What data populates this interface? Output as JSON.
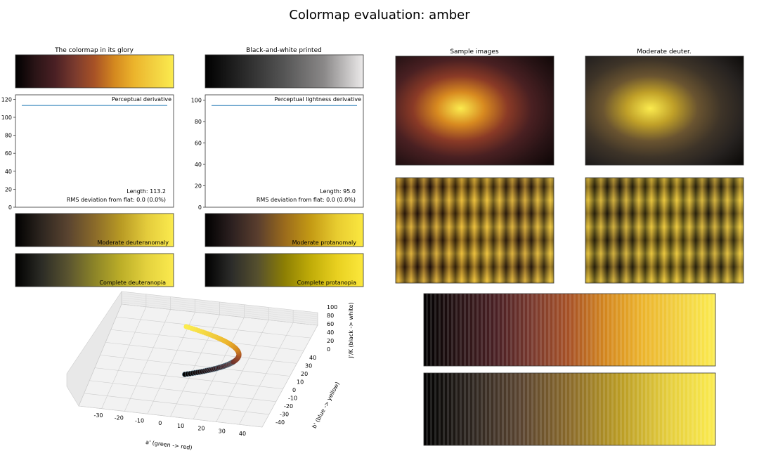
{
  "title": "Colormap evaluation: amber",
  "panels": {
    "glory_title": "The colormap in its glory",
    "bw_title": "Black-and-white printed",
    "samples_title": "Sample images",
    "deuter_title": "Moderate deuter.",
    "mod_deut": "Moderate deuteranomaly",
    "mod_prot": "Moderate protanomaly",
    "comp_deut": "Complete deuteranopia",
    "comp_prot": "Complete protanopia"
  },
  "colors": {
    "amber": [
      "#000000",
      "#2a1416",
      "#4a2024",
      "#7a3a2e",
      "#a85226",
      "#d4881f",
      "#ecb42c",
      "#f2d040",
      "#fbeb4e"
    ],
    "gray": [
      "#000000",
      "#2a2a2a",
      "#555555",
      "#8a8888",
      "#eceaea"
    ],
    "mod_deut": [
      "#000000",
      "#2e2620",
      "#5a4430",
      "#8a6a2a",
      "#b89a24",
      "#e4cc3c",
      "#fbeb4e"
    ],
    "mod_prot": [
      "#000000",
      "#2c2020",
      "#5a3e2e",
      "#9a6a1c",
      "#c49a14",
      "#e8cc30",
      "#fbe840"
    ],
    "comp_deut": [
      "#000000",
      "#2c2c26",
      "#5a5430",
      "#8c8428",
      "#bcae28",
      "#e4d23e",
      "#fbea4e"
    ],
    "comp_prot": [
      "#000000",
      "#2c2c2a",
      "#56502e",
      "#8c7e04",
      "#c0ac08",
      "#e8d020",
      "#fce83c"
    ],
    "line": "#1f77b4"
  },
  "chart_data": [
    {
      "type": "line",
      "title": "Perceptual derivative",
      "x": [
        0,
        1
      ],
      "series": [
        {
          "name": "derivative",
          "values": [
            113.2,
            113.2
          ]
        }
      ],
      "ylim": [
        0,
        125
      ],
      "yticks": [
        "0",
        "20",
        "40",
        "60",
        "80",
        "100",
        "120"
      ],
      "annotations": [
        "Length: 113.2",
        "RMS deviation from flat: 0.0 (0.0%)"
      ]
    },
    {
      "type": "line",
      "title": "Perceptual lightness derivative",
      "x": [
        0,
        1
      ],
      "series": [
        {
          "name": "lightness derivative",
          "values": [
            95.0,
            95.0
          ]
        }
      ],
      "ylim": [
        0,
        105
      ],
      "yticks": [
        "0",
        "20",
        "40",
        "60",
        "80",
        "100"
      ],
      "annotations": [
        "Length: 95.0",
        "RMS deviation from flat: 0.0 (0.0%)"
      ]
    },
    {
      "type": "scatter",
      "title": "",
      "xlabel": "a' (green -> red)",
      "ylabel": "b' (blue -> yellow)",
      "zlabel": "J'/K (black -> white)",
      "xticks": [
        "-30",
        "-20",
        "-10",
        "0",
        "10",
        "20",
        "30",
        "40"
      ],
      "yticks": [
        "-40",
        "-30",
        "-20",
        "-10",
        "0",
        "10",
        "20",
        "30",
        "40"
      ],
      "zticks": [
        "0",
        "20",
        "40",
        "60",
        "80",
        "100"
      ]
    }
  ]
}
